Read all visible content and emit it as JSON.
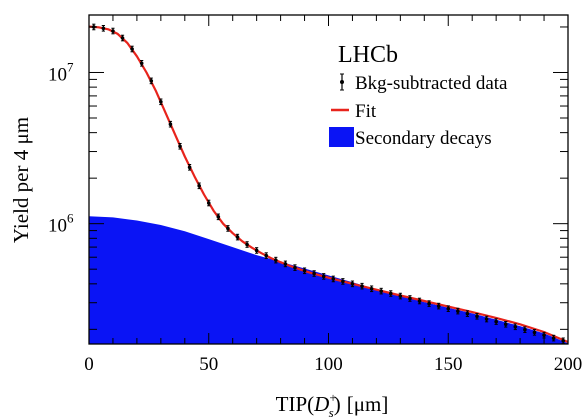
{
  "chart_data": {
    "type": "line",
    "experiment_label": "LHCb",
    "xlabel": {
      "main": "TIP(",
      "particle": "D",
      "sub": "s",
      "sup": "+",
      "close": ")",
      "unit": "[μm]"
    },
    "ylabel": "Yield per 4 μm",
    "xlim": [
      0,
      200
    ],
    "ylim": [
      160000,
      24000000
    ],
    "yscale": "log",
    "x_ticks": [
      0,
      50,
      100,
      150,
      200
    ],
    "x_tick_labels": [
      "0",
      "50",
      "100",
      "150",
      "200"
    ],
    "y_major_ticks": [
      1000000,
      10000000
    ],
    "y_tick_labels": [
      {
        "base": "10",
        "exp": "6",
        "value": 1000000
      },
      {
        "base": "10",
        "exp": "7",
        "value": 10000000
      }
    ],
    "legend": {
      "placement": "top-right",
      "entries": [
        {
          "label": "Bkg-subtracted data",
          "kind": "errorbar"
        },
        {
          "label": "Fit",
          "kind": "line"
        },
        {
          "label": "Secondary decays",
          "kind": "area"
        }
      ]
    },
    "colors": {
      "fit": "#e8241c",
      "secondary": "#0a14f5",
      "data": "#000000"
    },
    "series": [
      {
        "name": "Bkg-subtracted data",
        "kind": "points",
        "x": [
          2,
          6,
          10,
          14,
          18,
          22,
          26,
          30,
          34,
          38,
          42,
          46,
          50,
          54,
          58,
          62,
          66,
          70,
          74,
          78,
          82,
          86,
          90,
          94,
          98,
          102,
          106,
          110,
          114,
          118,
          122,
          126,
          130,
          134,
          138,
          142,
          146,
          150,
          154,
          158,
          162,
          166,
          170,
          174,
          178,
          182,
          186,
          190,
          194,
          198
        ],
        "y": [
          20000000,
          19600000,
          18800000,
          16900000,
          14300000,
          11500000,
          8800000,
          6400000,
          4550000,
          3250000,
          2360000,
          1780000,
          1370000,
          1110000,
          930000,
          815000,
          728000,
          665000,
          615000,
          574000,
          542000,
          512000,
          488000,
          468000,
          448000,
          431000,
          415000,
          400000,
          386000,
          371000,
          358000,
          345000,
          332000,
          320000,
          308000,
          296000,
          285000,
          274000,
          264000,
          254000,
          244000,
          234000,
          225000,
          216000,
          208000,
          199000,
          191000,
          183000,
          175000,
          168000
        ]
      },
      {
        "name": "Fit",
        "kind": "line",
        "x": [
          0,
          4,
          8,
          12,
          16,
          20,
          24,
          28,
          32,
          36,
          40,
          44,
          48,
          52,
          56,
          60,
          64,
          68,
          72,
          76,
          80,
          84,
          88,
          92,
          96,
          100,
          110,
          120,
          130,
          140,
          150,
          160,
          170,
          180,
          190,
          200
        ],
        "y": [
          20100000,
          19900000,
          19300000,
          18000000,
          15700000,
          12800000,
          10000000,
          7500000,
          5400000,
          3870000,
          2780000,
          2060000,
          1560000,
          1220000,
          1000000,
          865000,
          765000,
          694000,
          638000,
          592000,
          556000,
          525000,
          499000,
          476000,
          457000,
          439000,
          400000,
          366000,
          335000,
          308000,
          283000,
          260000,
          238000,
          216000,
          192000,
          165000
        ]
      },
      {
        "name": "Secondary decays",
        "kind": "area",
        "x": [
          0,
          10,
          20,
          30,
          40,
          50,
          60,
          70,
          80,
          90,
          100,
          110,
          120,
          130,
          140,
          150,
          160,
          170,
          180,
          190,
          200
        ],
        "y": [
          1120000,
          1100000,
          1050000,
          980000,
          890000,
          790000,
          700000,
          620000,
          560000,
          505000,
          455000,
          410000,
          368000,
          333000,
          303000,
          278000,
          255000,
          232000,
          210000,
          188000,
          162000
        ]
      }
    ]
  }
}
